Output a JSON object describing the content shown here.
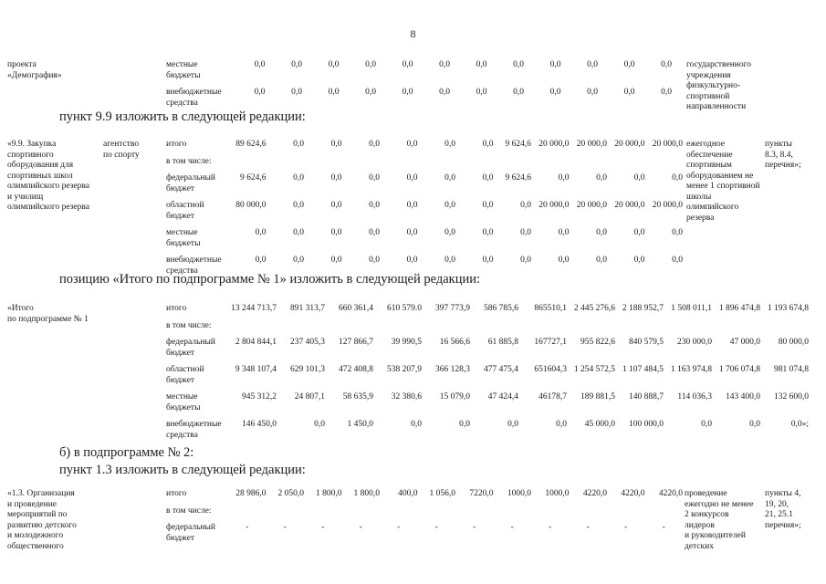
{
  "page": {
    "number": "8"
  },
  "headings": {
    "h1": "пункт 9.9 изложить в следующей редакции:",
    "h2": "позицию «Итого по подпрограмме № 1» изложить в следующей редакции:",
    "h3": "б) в подпрограмме № 2:",
    "h4": "пункт 1.3 изложить в следующей редакции:"
  },
  "table_top": {
    "project": "проекта\n«Демография»",
    "rows": [
      {
        "label": "местные\nбюджеты",
        "values": [
          "0,0",
          "0,0",
          "0,0",
          "0,0",
          "0,0",
          "0,0",
          "0,0",
          "0,0",
          "0,0",
          "0,0",
          "0,0",
          "0,0"
        ]
      },
      {
        "label": "внебюджетные\nсредства",
        "values": [
          "0,0",
          "0,0",
          "0,0",
          "0,0",
          "0,0",
          "0,0",
          "0,0",
          "0,0",
          "0,0",
          "0,0",
          "0,0",
          "0,0"
        ]
      }
    ],
    "result": "государственного\nучреждения\nфизкультурно-\nспортивной\nнаправленности"
  },
  "table_99": {
    "desc": "«9.9. Закупка\nспортивного\nоборудования для\nспортивных школ\nолимпийского резерва\nи училищ\nолимпийского резерва",
    "agency": "агентство\nпо спорту",
    "rows": [
      {
        "label": "итого",
        "values": [
          "89 624,6",
          "0,0",
          "0,0",
          "0,0",
          "0,0",
          "0,0",
          "0,0",
          "9 624,6",
          "20 000,0",
          "20 000,0",
          "20 000,0",
          "20 000,0"
        ]
      },
      {
        "label": "в том числе:",
        "values": []
      },
      {
        "label": "федеральный\nбюджет",
        "values": [
          "9 624,6",
          "0,0",
          "0,0",
          "0,0",
          "0,0",
          "0,0",
          "0,0",
          "9 624,6",
          "0,0",
          "0,0",
          "0,0",
          "0,0"
        ]
      },
      {
        "label": "областной\nбюджет",
        "values": [
          "80 000,0",
          "0,0",
          "0,0",
          "0,0",
          "0,0",
          "0,0",
          "0,0",
          "0,0",
          "20 000,0",
          "20 000,0",
          "20 000,0",
          "20 000,0"
        ]
      },
      {
        "label": "местные\nбюджеты",
        "values": [
          "0,0",
          "0,0",
          "0,0",
          "0,0",
          "0,0",
          "0,0",
          "0,0",
          "0,0",
          "0,0",
          "0,0",
          "0,0",
          "0,0"
        ]
      },
      {
        "label": "внебюджетные\nсредства",
        "values": [
          "0,0",
          "0,0",
          "0,0",
          "0,0",
          "0,0",
          "0,0",
          "0,0",
          "0,0",
          "0,0",
          "0,0",
          "0,0",
          "0,0"
        ]
      }
    ],
    "result": "ежегодное\nобеспечение\nспортивным\nоборудованием не\nменее 1 спортивной\nшколы\nолимпийского\nрезерва",
    "items": "пункты\n8.3, 8.4,\nперечня»;"
  },
  "table_itogo": {
    "desc": "«Итого\nпо подпрограмме № 1",
    "rows": [
      {
        "label": "итого",
        "values": [
          "13 244 713,7",
          "891 313,7",
          "660 361,4",
          "610 579.0",
          "397 773,9",
          "586 785,6",
          "865510,1",
          "2 445 276,6",
          "2 188 952,7",
          "1 508 011,1",
          "1 896 474,8",
          "1 193 674,8"
        ]
      },
      {
        "label": "в том числе:",
        "values": []
      },
      {
        "label": "федеральный\nбюджет",
        "values": [
          "2 804 844,1",
          "237 405,3",
          "127 866,7",
          "39 990,5",
          "16 566,6",
          "61 885,8",
          "167727,1",
          "955 822,6",
          "840 579,5",
          "230 000,0",
          "47 000,0",
          "80 000,0"
        ]
      },
      {
        "label": "областной\nбюджет",
        "values": [
          "9 348 107,4",
          "629 101,3",
          "472 408,8",
          "538 207,9",
          "366 128,3",
          "477 475,4",
          "651604,3",
          "1 254 572,5",
          "1 107 484,5",
          "1 163 974,8",
          "1 706 074,8",
          "981 074,8"
        ]
      },
      {
        "label": "местные\nбюджеты",
        "values": [
          "945 312,2",
          "24 807,1",
          "58 635,9",
          "32 380,6",
          "15 079,0",
          "47 424,4",
          "46178,7",
          "189 881,5",
          "140 888,7",
          "114 036,3",
          "143 400,0",
          "132 600,0"
        ]
      },
      {
        "label": "внебюджетные\nсредства",
        "values": [
          "146 450,0",
          "0,0",
          "1 450,0",
          "0,0",
          "0,0",
          "0,0",
          "0,0",
          "45 000,0",
          "100 000,0",
          "0,0",
          "0,0",
          "0,0»;"
        ]
      }
    ]
  },
  "table_13": {
    "desc": "«1.3. Организация\nи проведение\nмероприятий по\nразвитию детского\nи молодежного\nобщественного",
    "rows": [
      {
        "label": "итого",
        "values": [
          "28 986,0",
          "2 050,0",
          "1 800,0",
          "1 800,0",
          "400,0",
          "1 056,0",
          "7220,0",
          "1000,0",
          "1000,0",
          "4220,0",
          "4220,0",
          "4220,0"
        ]
      },
      {
        "label": "в том числе:",
        "values": []
      },
      {
        "label": "федеральный\nбюджет",
        "values": [
          "-",
          "-",
          "-",
          "-",
          "-",
          "-",
          "-",
          "-",
          "-",
          "-",
          "-",
          "-"
        ]
      }
    ],
    "result": "проведение\nежегодно не менее\n2 конкурсов\nлидеров\nи руководителей\nдетских",
    "items": "пункты 4,\n19, 20,\n21, 25.1\nперечня»;"
  }
}
